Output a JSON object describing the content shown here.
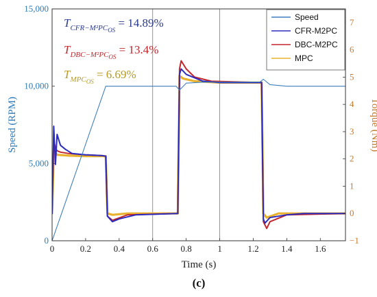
{
  "chart_data": {
    "type": "line",
    "xlabel": "Time (s)",
    "ylabel_left": "Speed (RPM)",
    "ylabel_right": "Torque (Nm)",
    "xlim": [
      0,
      1.75
    ],
    "ylim_left": [
      0,
      15000
    ],
    "ylim_right": [
      -1,
      7.5
    ],
    "x_ticks": [
      0,
      0.2,
      0.4,
      0.6,
      0.8,
      1,
      1.2,
      1.4,
      1.6
    ],
    "y_ticks_left": [
      0,
      5000,
      10000,
      15000
    ],
    "y_ticks_left_labels": [
      "0",
      "5,000",
      "10,000",
      "15,000"
    ],
    "y_ticks_right": [
      -1,
      0,
      1,
      2,
      3,
      4,
      5,
      6,
      7
    ],
    "vlines": [
      0.6,
      1.0
    ],
    "legend_position": "top-right",
    "series": [
      {
        "name": "Speed",
        "axis": "left",
        "color": "#3d7fbf",
        "x": [
          0,
          0.32,
          0.33,
          0.74,
          0.76,
          0.8,
          0.9,
          1.0,
          1.24,
          1.26,
          1.3,
          1.4,
          1.75
        ],
        "y": [
          0,
          10000,
          10000,
          10000,
          9750,
          10200,
          10260,
          10270,
          10270,
          10450,
          10100,
          10000,
          10000
        ]
      },
      {
        "name": "CFR-M2PC",
        "axis": "right",
        "color": "#2b2bbf",
        "x": [
          0,
          0.01,
          0.02,
          0.03,
          0.05,
          0.08,
          0.12,
          0.2,
          0.3,
          0.32,
          0.33,
          0.36,
          0.4,
          0.5,
          0.75,
          0.76,
          0.77,
          0.8,
          0.9,
          1.0,
          1.25,
          1.26,
          1.27,
          1.3,
          1.4,
          1.5,
          1.75
        ],
        "y": [
          0,
          3.2,
          1.8,
          2.9,
          2.5,
          2.35,
          2.2,
          2.15,
          2.12,
          2.1,
          -0.1,
          -0.3,
          -0.2,
          -0.05,
          0,
          5.1,
          5.3,
          5.1,
          4.85,
          4.8,
          4.8,
          -0.2,
          -0.35,
          -0.15,
          -0.05,
          0,
          0
        ]
      },
      {
        "name": "DBC-M2PC",
        "axis": "right",
        "color": "#c0272d",
        "x": [
          0,
          0.01,
          0.02,
          0.03,
          0.05,
          0.1,
          0.2,
          0.3,
          0.32,
          0.33,
          0.36,
          0.45,
          0.75,
          0.76,
          0.77,
          0.8,
          0.85,
          0.95,
          1.25,
          1.26,
          1.28,
          1.3,
          1.4,
          1.75
        ],
        "y": [
          0,
          2.7,
          2.4,
          2.3,
          2.25,
          2.2,
          2.15,
          2.12,
          2.1,
          -0.1,
          -0.25,
          -0.05,
          0,
          5.3,
          5.6,
          5.3,
          5.0,
          4.85,
          4.8,
          -0.3,
          -0.55,
          -0.3,
          -0.05,
          0
        ]
      },
      {
        "name": "MPC",
        "axis": "right",
        "color": "#e8b22e",
        "x": [
          0,
          0.01,
          0.03,
          0.1,
          0.2,
          0.3,
          0.32,
          0.33,
          0.36,
          0.45,
          0.75,
          0.76,
          0.78,
          0.85,
          1.0,
          1.25,
          1.26,
          1.28,
          1.35,
          1.75
        ],
        "y": [
          0,
          2.3,
          2.15,
          2.12,
          2.1,
          2.1,
          2.1,
          0,
          -0.05,
          0,
          0,
          5.05,
          4.95,
          4.85,
          4.8,
          4.8,
          0,
          -0.15,
          0,
          0
        ]
      }
    ],
    "annotations": [
      {
        "text_main": "T",
        "text_sub": "CFR−M²PC",
        "text_subsub": "OS",
        "value": " = 14.89%",
        "color": "#2b3a8f"
      },
      {
        "text_main": "T",
        "text_sub": "DBC−M²PC",
        "text_subsub": "OS",
        "value": " = 13.4%",
        "color": "#c0272d"
      },
      {
        "text_main": "T",
        "text_sub": "MPC",
        "text_subsub": "OS",
        "value": " = 6.69%",
        "color": "#b89a1e"
      }
    ],
    "panel_label": "(c)"
  }
}
